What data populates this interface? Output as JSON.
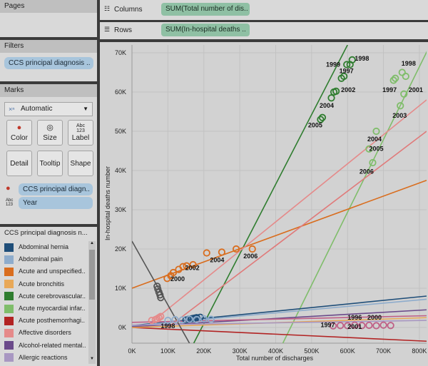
{
  "sidebar": {
    "pages_title": "Pages",
    "filters_title": "Filters",
    "filter_pill": "CCS principal diagnosis ..",
    "marks_title": "Marks",
    "mark_type": "Automatic",
    "buttons": {
      "color": "Color",
      "size": "Size",
      "label": "Label",
      "detail": "Detail",
      "tooltip": "Tooltip",
      "shape": "Shape"
    },
    "label_icon_text": "Abc\n123",
    "color_field": "CCS principal diagn..",
    "label_field": "Year",
    "legend_title": "CCS principal diagnosis n...",
    "legend_items": [
      {
        "label": "Abdominal hernia",
        "color": "#1f4e79"
      },
      {
        "label": "Abdominal pain",
        "color": "#8eaccc"
      },
      {
        "label": "Acute and unspecified..",
        "color": "#d96d1e"
      },
      {
        "label": "Acute bronchitis",
        "color": "#e8a857"
      },
      {
        "label": "Acute cerebrovascular..",
        "color": "#2f7d2f"
      },
      {
        "label": "Acute myocardial infar..",
        "color": "#7fbd6a"
      },
      {
        "label": "Acute posthemorrhagi..",
        "color": "#b22323"
      },
      {
        "label": "Affective disorders",
        "color": "#e58a8a"
      },
      {
        "label": "Alcohol-related mental..",
        "color": "#6b4a8a"
      },
      {
        "label": "Allergic reactions",
        "color": "#a897c2"
      }
    ]
  },
  "shelves": {
    "columns_label": "Columns",
    "columns_pill": "SUM(Total number of dis..",
    "rows_label": "Rows",
    "rows_pill": "SUM(In-hospital deaths .."
  },
  "chart_data": {
    "type": "scatter",
    "xlabel": "Total number of discharges",
    "ylabel": "In-hospital deaths number",
    "xlim": [
      0,
      820000
    ],
    "ylim": [
      -4000,
      72000
    ],
    "x_ticks": [
      "0K",
      "100K",
      "200K",
      "300K",
      "400K",
      "500K",
      "600K",
      "700K",
      "800K"
    ],
    "y_ticks": [
      "0K",
      "10K",
      "20K",
      "30K",
      "40K",
      "50K",
      "60K",
      "70K"
    ],
    "grid": true,
    "series": [
      {
        "name": "Acute cerebrovascular..",
        "color": "#2f7d2f",
        "x": [
          525000,
          530000,
          555000,
          562000,
          568000,
          583000,
          590000,
          598000,
          607000,
          613000
        ],
        "y": [
          53000,
          53500,
          58500,
          60000,
          60200,
          63500,
          64000,
          67000,
          67000,
          68200
        ],
        "trend": [
          [
            172000,
            -4000
          ],
          [
            600000,
            72000
          ]
        ]
      },
      {
        "name": "Acute myocardial infar..",
        "color": "#7fbd6a",
        "x": [
          660000,
          670000,
          680000,
          728000,
          733000,
          747000,
          752000,
          757000,
          762000
        ],
        "y": [
          45500,
          42000,
          50000,
          63000,
          63500,
          56500,
          65000,
          59500,
          64000
        ],
        "trend": [
          [
            420000,
            -4000
          ],
          [
            830000,
            72000
          ]
        ]
      },
      {
        "name": "Acute and unspecified..",
        "color": "#d96d1e",
        "x": [
          98000,
          108000,
          115000,
          130000,
          142000,
          152000,
          170000,
          208000,
          250000,
          290000,
          335000
        ],
        "y": [
          12500,
          13200,
          14000,
          14800,
          15500,
          15700,
          16000,
          19000,
          19200,
          20000,
          20000
        ],
        "trend": [
          [
            0,
            10000
          ],
          [
            820000,
            37500
          ]
        ]
      },
      {
        "name": "Affective disorders",
        "color": "#e58a8a",
        "x": [
          55000,
          65000,
          70000,
          75000,
          80000
        ],
        "y": [
          1800,
          2000,
          2200,
          2500,
          2800
        ],
        "trend": [
          [
            50000,
            1000
          ],
          [
            820000,
            58000
          ]
        ]
      },
      {
        "name": "Abdominal hernia",
        "color": "#1f4e79",
        "x": [
          150000,
          158000,
          165000,
          170000,
          175000,
          180000,
          190000
        ],
        "y": [
          1900,
          2100,
          2200,
          2300,
          2400,
          2500,
          2600
        ],
        "trend": [
          [
            0,
            500
          ],
          [
            820000,
            8000
          ]
        ]
      },
      {
        "name": "Acute posthemorrhagi..",
        "color": "#b22323",
        "x": [],
        "y": [],
        "trend": [
          [
            0,
            0
          ],
          [
            820000,
            -3500
          ]
        ]
      },
      {
        "name": "Abdominal pain",
        "color": "#8eaccc",
        "x": [
          100000,
          120000,
          140000,
          160000,
          180000,
          200000,
          220000
        ],
        "y": [
          1800,
          2000,
          1900,
          2100,
          2000,
          2200,
          2100
        ],
        "trend": [
          [
            0,
            400
          ],
          [
            820000,
            7200
          ]
        ]
      },
      {
        "name": "Alcohol-related mental..",
        "color": "#6b4a8a",
        "x": [],
        "y": [],
        "trend": [
          [
            0,
            200
          ],
          [
            820000,
            4500
          ]
        ]
      },
      {
        "name": "Acute bronchitis",
        "color": "#e8a857",
        "x": [],
        "y": [],
        "trend": [
          [
            0,
            0
          ],
          [
            820000,
            2500
          ]
        ]
      },
      {
        "name": "Allergic reactions",
        "color": "#a897c2",
        "x": [],
        "y": [],
        "trend": [
          [
            0,
            600
          ],
          [
            820000,
            1800
          ]
        ]
      }
    ],
    "extra_series": [
      {
        "color": "#555555",
        "x": [
          70000,
          72000,
          75000,
          78000,
          80000
        ],
        "y": [
          10500,
          9800,
          9000,
          8300,
          7600
        ],
        "trend": [
          [
            0,
            22000
          ],
          [
            160000,
            -4000
          ]
        ]
      },
      {
        "color": "#bf5f86",
        "x": [
          560000,
          580000,
          600000,
          620000,
          640000,
          660000,
          680000,
          700000,
          720000
        ],
        "y": [
          400,
          500,
          450,
          600,
          500,
          550,
          450,
          600,
          500
        ],
        "trend": [
          [
            0,
            1300
          ],
          [
            820000,
            3000
          ]
        ]
      },
      {
        "color": "#e07a7a",
        "x": [],
        "y": [],
        "trend": [
          [
            100000,
            0
          ],
          [
            820000,
            50000
          ]
        ]
      }
    ],
    "annotations": [
      {
        "text": "1998",
        "x": 640000,
        "y": 68000
      },
      {
        "text": "1999",
        "x": 560000,
        "y": 66500
      },
      {
        "text": "1997",
        "x": 597000,
        "y": 64800
      },
      {
        "text": "2002",
        "x": 602000,
        "y": 60000
      },
      {
        "text": "2004",
        "x": 542000,
        "y": 56000
      },
      {
        "text": "2005",
        "x": 510000,
        "y": 51000
      },
      {
        "text": "1998",
        "x": 770000,
        "y": 66700
      },
      {
        "text": "1997",
        "x": 717000,
        "y": 60000
      },
      {
        "text": "2001",
        "x": 790000,
        "y": 60000
      },
      {
        "text": "2003",
        "x": 745000,
        "y": 53500
      },
      {
        "text": "2004",
        "x": 675000,
        "y": 47500
      },
      {
        "text": "2005",
        "x": 680000,
        "y": 45000
      },
      {
        "text": "2006",
        "x": 653000,
        "y": 39200
      },
      {
        "text": "2006",
        "x": 330000,
        "y": 17600
      },
      {
        "text": "2004",
        "x": 237000,
        "y": 16600
      },
      {
        "text": "2002",
        "x": 168000,
        "y": 14600
      },
      {
        "text": "2000",
        "x": 127000,
        "y": 11800
      },
      {
        "text": "1998",
        "x": 100000,
        "y": -200
      },
      {
        "text": "1996",
        "x": 620000,
        "y": 2000
      },
      {
        "text": "2000",
        "x": 675000,
        "y": 2000
      },
      {
        "text": "1997",
        "x": 545000,
        "y": 100
      },
      {
        "text": "2001",
        "x": 620000,
        "y": -400
      }
    ]
  }
}
